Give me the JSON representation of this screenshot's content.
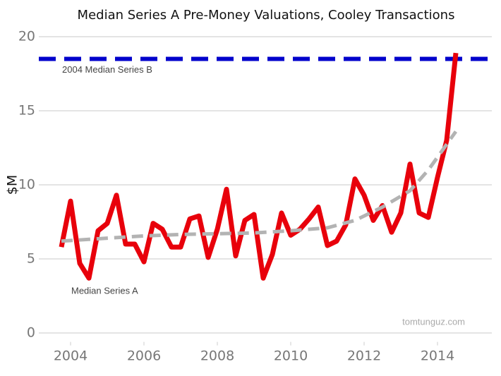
{
  "chart_data": {
    "type": "line",
    "title": "Median Series A Pre-Money Valuations, Cooley Transactions",
    "ylabel": "$M",
    "xlim": [
      2003.3,
      2015.4
    ],
    "xticks": [
      2004,
      2006,
      2008,
      2010,
      2012,
      2014
    ],
    "ylim": [
      -0.6,
      20.6
    ],
    "yticks": [
      0,
      5,
      10,
      15,
      20
    ],
    "grid": true,
    "series": [
      {
        "name": "Median Series A",
        "color": "#e8000b",
        "x": [
          2003.75,
          2004,
          2004.25,
          2004.5,
          2004.75,
          2005,
          2005.25,
          2005.5,
          2005.75,
          2006,
          2006.25,
          2006.5,
          2006.75,
          2007,
          2007.25,
          2007.5,
          2007.75,
          2008,
          2008.25,
          2008.5,
          2008.75,
          2009,
          2009.25,
          2009.5,
          2009.75,
          2010,
          2010.25,
          2010.5,
          2010.75,
          2011,
          2011.25,
          2011.5,
          2011.75,
          2012,
          2012.25,
          2012.5,
          2012.75,
          2013,
          2013.25,
          2013.5,
          2013.75,
          2014,
          2014.25,
          2014.5
        ],
        "values": [
          5.8,
          8.9,
          4.7,
          3.7,
          6.9,
          7.4,
          9.3,
          6.0,
          6.0,
          4.8,
          7.4,
          7.0,
          5.8,
          5.8,
          7.7,
          7.9,
          5.1,
          7.0,
          9.7,
          5.2,
          7.6,
          8.0,
          3.7,
          5.3,
          8.1,
          6.6,
          7.0,
          7.7,
          8.5,
          5.9,
          6.2,
          7.3,
          10.4,
          9.3,
          7.6,
          8.6,
          6.8,
          8.1,
          11.4,
          8.1,
          7.8,
          10.5,
          13.0,
          18.9
        ]
      }
    ],
    "trend": {
      "color": "#b3b3b3",
      "x": [
        2003.75,
        2005,
        2006,
        2007,
        2008,
        2009,
        2010,
        2011,
        2011.75,
        2012.5,
        2013.25,
        2013.75,
        2014.5
      ],
      "values": [
        6.2,
        6.4,
        6.55,
        6.65,
        6.7,
        6.75,
        6.9,
        7.1,
        7.6,
        8.5,
        9.6,
        11.0,
        13.6
      ]
    },
    "reference_line": {
      "label": "2004 Median Series B",
      "value": 18.5,
      "color": "#0000cc"
    },
    "watermark": "tomtunguz.com"
  }
}
